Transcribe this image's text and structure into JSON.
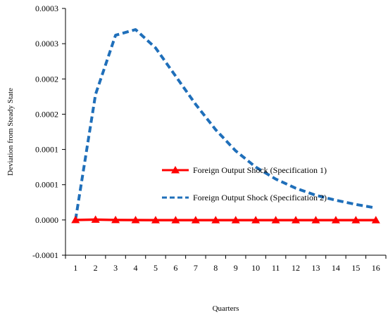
{
  "chart_data": {
    "type": "line",
    "title": "",
    "xlabel": "Quarters",
    "ylabel": "Deviation from Steady State",
    "categories": [
      "1",
      "2",
      "3",
      "4",
      "5",
      "6",
      "7",
      "8",
      "9",
      "10",
      "11",
      "12",
      "13",
      "14",
      "15",
      "16"
    ],
    "y_tick_labels": [
      "-0.0001",
      "0.0000",
      "0.0001",
      "0.0001",
      "0.0002",
      "0.0002",
      "0.0003",
      "0.0003"
    ],
    "ylim": [
      -5e-05,
      0.0003
    ],
    "grid": false,
    "legend_position": "center-right",
    "series": [
      {
        "name": "Foreign Output Shock (Specification 1)",
        "style": "solid",
        "marker": "triangle",
        "color": "#ff0000",
        "values": [
          0.0,
          5e-07,
          0.0,
          -2e-07,
          -3e-07,
          -3e-07,
          -3e-07,
          -3e-07,
          -3e-07,
          -3e-07,
          -3e-07,
          -3e-07,
          -3e-07,
          -3e-07,
          -3e-07,
          -3e-07
        ]
      },
      {
        "name": "Foreign Output Shock (Specification 2)",
        "style": "dashed",
        "marker": "none",
        "color": "#1f6fba",
        "values": [
          0.0,
          0.000178,
          0.000262,
          0.00027,
          0.000244,
          0.000204,
          0.000164,
          0.000128,
          9.8e-05,
          7.5e-05,
          5.8e-05,
          4.5e-05,
          3.5e-05,
          2.8e-05,
          2.2e-05,
          1.7e-05
        ]
      }
    ]
  }
}
